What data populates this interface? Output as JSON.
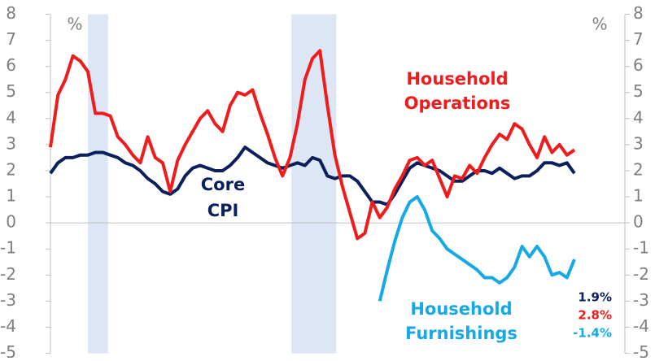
{
  "chart_data": {
    "type": "line",
    "unit_left": "%",
    "unit_right": "%",
    "categories": [
      null,
      null,
      null,
      null,
      null,
      null,
      null,
      null,
      null,
      null,
      null,
      null,
      null,
      null,
      null,
      null,
      null,
      null,
      null,
      null,
      null,
      null,
      null,
      null,
      null,
      null,
      null,
      null,
      null,
      null,
      null,
      null,
      null,
      null,
      null,
      null,
      null,
      null,
      null,
      null,
      null,
      null,
      null,
      null,
      null,
      null,
      null,
      null,
      null,
      null,
      null,
      null,
      null,
      null,
      null,
      null,
      null,
      null,
      null,
      null,
      null,
      null,
      null,
      null,
      null,
      null,
      null,
      null,
      null,
      null,
      null
    ],
    "recessions": [
      [
        5,
        7.7
      ],
      [
        32.2,
        38.2
      ]
    ],
    "recession_color": "#dce6f5",
    "series": [
      {
        "name": "Core CPI",
        "color": "#0a1f5c",
        "values": [
          1.9,
          2.3,
          2.5,
          2.5,
          2.6,
          2.6,
          2.7,
          2.7,
          2.6,
          2.5,
          2.3,
          2.2,
          2.0,
          1.7,
          1.5,
          1.2,
          1.1,
          1.3,
          1.8,
          2.1,
          2.2,
          2.1,
          2.0,
          2.0,
          2.2,
          2.5,
          2.9,
          2.7,
          2.5,
          2.3,
          2.2,
          2.1,
          2.2,
          2.3,
          2.2,
          2.5,
          2.4,
          1.8,
          1.7,
          1.8,
          1.8,
          1.6,
          1.2,
          0.8,
          0.8,
          0.7,
          1.1,
          1.6,
          2.1,
          2.3,
          2.2,
          2.1,
          2.0,
          1.8,
          1.6,
          1.6,
          1.8,
          2.0,
          2.0,
          1.9,
          2.1,
          1.9,
          1.7,
          1.8,
          1.8,
          2.0,
          2.3,
          2.3,
          2.2,
          2.3,
          1.9
        ]
      },
      {
        "name": "Household Operations",
        "color": "#ee1c1c",
        "values": [
          2.9,
          4.9,
          5.5,
          6.4,
          6.2,
          5.8,
          4.2,
          4.2,
          4.1,
          3.3,
          3.0,
          2.6,
          2.3,
          3.3,
          2.5,
          2.3,
          1.2,
          2.4,
          3.0,
          3.5,
          4.0,
          4.3,
          3.8,
          3.5,
          4.5,
          5.0,
          4.9,
          5.1,
          4.2,
          3.4,
          2.5,
          1.8,
          2.5,
          3.8,
          5.5,
          6.3,
          6.6,
          4.5,
          2.6,
          1.4,
          0.4,
          -0.6,
          -0.4,
          0.8,
          0.2,
          0.6,
          1.3,
          1.8,
          2.4,
          2.5,
          2.2,
          2.4,
          1.7,
          1.0,
          1.8,
          1.7,
          2.2,
          1.9,
          2.5,
          3.0,
          3.4,
          3.2,
          3.8,
          3.6,
          3.0,
          2.5,
          3.3,
          2.7,
          3.0,
          2.6,
          2.8
        ]
      },
      {
        "name": "Household Furnishings",
        "color": "#16a9e6",
        "values": [
          null,
          null,
          null,
          null,
          null,
          null,
          null,
          null,
          null,
          null,
          null,
          null,
          null,
          null,
          null,
          null,
          null,
          null,
          null,
          null,
          null,
          null,
          null,
          null,
          null,
          null,
          null,
          null,
          null,
          null,
          null,
          null,
          null,
          null,
          null,
          null,
          null,
          null,
          null,
          null,
          null,
          null,
          null,
          null,
          -3.0,
          -1.8,
          -0.7,
          0.2,
          0.8,
          1.0,
          0.5,
          -0.3,
          -0.6,
          -1.0,
          -1.2,
          -1.4,
          -1.6,
          -1.8,
          -2.1,
          -2.1,
          -2.3,
          -2.1,
          -1.7,
          -0.9,
          -1.3,
          -0.9,
          -1.3,
          -2.0,
          -1.9,
          -2.1,
          -1.4
        ]
      }
    ],
    "end_labels": [
      "1.9%",
      "2.8%",
      "-1.4%"
    ],
    "ylim": [
      -5,
      8
    ],
    "yticks": [
      -5,
      -4,
      -3,
      -2,
      -1,
      0,
      1,
      2,
      3,
      4,
      5,
      6,
      7,
      8
    ],
    "y2lim": [
      -5,
      8
    ],
    "y2ticks": [
      -5,
      -4,
      -3,
      -2,
      -1,
      0,
      1,
      2,
      3,
      4,
      5,
      6,
      7,
      8
    ]
  }
}
